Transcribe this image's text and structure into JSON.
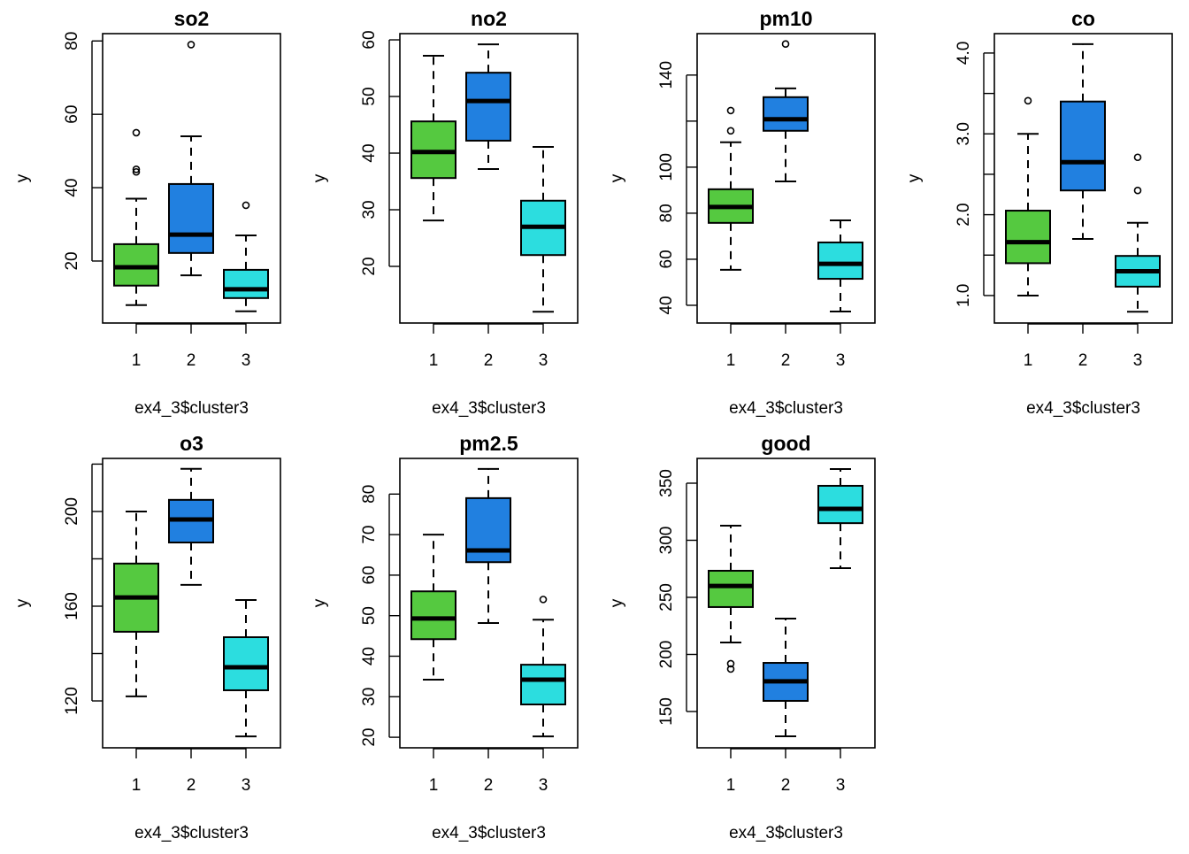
{
  "colors": {
    "cluster1": "#55C940",
    "cluster2": "#2180E0",
    "cluster3": "#2CDDDF"
  },
  "chart_data": [
    {
      "type": "boxplot",
      "title": "so2",
      "xlabel": "ex4_3$cluster3",
      "ylabel": "y",
      "categories": [
        "1",
        "2",
        "3"
      ],
      "ylim": [
        3.1,
        82
      ],
      "yticks": [
        20,
        40,
        60,
        80
      ],
      "ytick_labels": [
        "20",
        "40",
        "60",
        "80"
      ],
      "boxes": [
        {
          "low": 8,
          "q1": 13.3,
          "median": 18.3,
          "q3": 24.6,
          "high": 37,
          "outliers": [
            44.3,
            45,
            55
          ]
        },
        {
          "low": 16.1,
          "q1": 22.2,
          "median": 27.2,
          "q3": 41,
          "high": 54,
          "outliers": [
            79
          ]
        },
        {
          "low": 6.3,
          "q1": 9.9,
          "median": 12.3,
          "q3": 17.6,
          "high": 27,
          "outliers": [
            35.2
          ]
        }
      ]
    },
    {
      "type": "boxplot",
      "title": "no2",
      "xlabel": "ex4_3$cluster3",
      "ylabel": "y",
      "categories": [
        "1",
        "2",
        "3"
      ],
      "ylim": [
        10,
        61.1
      ],
      "yticks": [
        20,
        30,
        40,
        50,
        60
      ],
      "ytick_labels": [
        "20",
        "30",
        "40",
        "50",
        "60"
      ],
      "boxes": [
        {
          "low": 28.1,
          "q1": 35.6,
          "median": 40.2,
          "q3": 45.6,
          "high": 57.2,
          "outliers": []
        },
        {
          "low": 37.2,
          "q1": 42.2,
          "median": 49.2,
          "q3": 54.2,
          "high": 59.2,
          "outliers": []
        },
        {
          "low": 12,
          "q1": 22,
          "median": 27,
          "q3": 31.6,
          "high": 41.1,
          "outliers": []
        }
      ]
    },
    {
      "type": "boxplot",
      "title": "pm10",
      "xlabel": "ex4_3$cluster3",
      "ylabel": "y",
      "categories": [
        "1",
        "2",
        "3"
      ],
      "ylim": [
        32.3,
        158
      ],
      "yticks": [
        40,
        60,
        80,
        100,
        120,
        140
      ],
      "ytick_labels": [
        "40",
        "60",
        "80",
        "100",
        "",
        "140"
      ],
      "boxes": [
        {
          "low": 55.4,
          "q1": 75.8,
          "median": 82.7,
          "q3": 90.4,
          "high": 110.8,
          "outliers": [
            115.8,
            124.6
          ]
        },
        {
          "low": 93.8,
          "q1": 115.8,
          "median": 120.8,
          "q3": 130.4,
          "high": 134.2,
          "outliers": [
            153.5
          ]
        },
        {
          "low": 37.3,
          "q1": 51.5,
          "median": 58,
          "q3": 67.3,
          "high": 76.9,
          "outliers": []
        }
      ]
    },
    {
      "type": "boxplot",
      "title": "co",
      "xlabel": "ex4_3$cluster3",
      "ylabel": "y",
      "categories": [
        "1",
        "2",
        "3"
      ],
      "ylim": [
        0.66,
        4.24
      ],
      "yticks": [
        1.0,
        1.5,
        2.0,
        2.5,
        3.0,
        3.5,
        4.0
      ],
      "ytick_labels": [
        "1.0",
        "",
        "2.0",
        "",
        "3.0",
        "",
        "4.0"
      ],
      "boxes": [
        {
          "low": 1.0,
          "q1": 1.4,
          "median": 1.66,
          "q3": 2.05,
          "high": 3.0,
          "outliers": [
            3.41
          ]
        },
        {
          "low": 1.7,
          "q1": 2.3,
          "median": 2.65,
          "q3": 3.4,
          "high": 4.11,
          "outliers": []
        },
        {
          "low": 0.8,
          "q1": 1.11,
          "median": 1.3,
          "q3": 1.49,
          "high": 1.9,
          "outliers": [
            2.3,
            2.71
          ]
        }
      ]
    },
    {
      "type": "boxplot",
      "title": "o3",
      "xlabel": "ex4_3$cluster3",
      "ylabel": "y",
      "categories": [
        "1",
        "2",
        "3"
      ],
      "ylim": [
        100.2,
        222.4
      ],
      "yticks": [
        120,
        140,
        160,
        180,
        200,
        220
      ],
      "ytick_labels": [
        "120",
        "",
        "160",
        "",
        "200",
        ""
      ],
      "boxes": [
        {
          "low": 121.9,
          "q1": 149.2,
          "median": 163.7,
          "q3": 178,
          "high": 200,
          "outliers": []
        },
        {
          "low": 169,
          "q1": 186.9,
          "median": 196.6,
          "q3": 204.9,
          "high": 218,
          "outliers": []
        },
        {
          "low": 105,
          "q1": 124.5,
          "median": 134.2,
          "q3": 146.9,
          "high": 162.6,
          "outliers": []
        }
      ]
    },
    {
      "type": "boxplot",
      "title": "pm2.5",
      "xlabel": "ex4_3$cluster3",
      "ylabel": "y",
      "categories": [
        "1",
        "2",
        "3"
      ],
      "ylim": [
        17.4,
        88.8
      ],
      "yticks": [
        20,
        30,
        40,
        50,
        60,
        70,
        80
      ],
      "ytick_labels": [
        "20",
        "30",
        "40",
        "50",
        "60",
        "70",
        "80"
      ],
      "boxes": [
        {
          "low": 34.2,
          "q1": 44.2,
          "median": 49.3,
          "q3": 56,
          "high": 70,
          "outliers": []
        },
        {
          "low": 48.2,
          "q1": 63.2,
          "median": 66.1,
          "q3": 79,
          "high": 86.2,
          "outliers": []
        },
        {
          "low": 20.2,
          "q1": 28.1,
          "median": 34.2,
          "q3": 37.9,
          "high": 49,
          "outliers": [
            54
          ]
        }
      ]
    },
    {
      "type": "boxplot",
      "title": "good",
      "xlabel": "ex4_3$cluster3",
      "ylabel": "y",
      "categories": [
        "1",
        "2",
        "3"
      ],
      "ylim": [
        118.2,
        371.7
      ],
      "yticks": [
        150,
        200,
        250,
        300,
        350
      ],
      "ytick_labels": [
        "150",
        "200",
        "250",
        "300",
        "350"
      ],
      "boxes": [
        {
          "low": 210.5,
          "q1": 241.5,
          "median": 260,
          "q3": 273.3,
          "high": 312.8,
          "outliers": [
            191.9,
            187.2
          ]
        },
        {
          "low": 128.3,
          "q1": 159.3,
          "median": 176.4,
          "q3": 192.6,
          "high": 231.4,
          "outliers": []
        },
        {
          "low": 275.6,
          "q1": 315,
          "median": 327.5,
          "q3": 347.7,
          "high": 362.4,
          "outliers": []
        }
      ]
    }
  ]
}
